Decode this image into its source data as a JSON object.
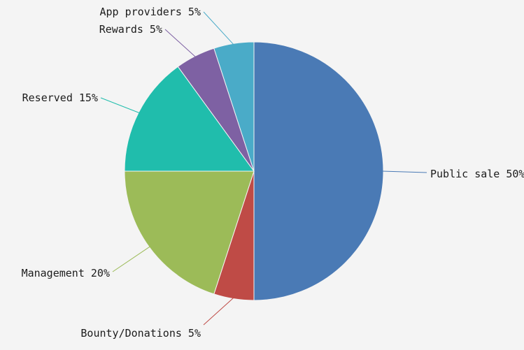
{
  "colors": {
    "background": "#f4f4f4",
    "text": "#1c1c1c"
  },
  "chart_data": {
    "type": "pie",
    "title": "",
    "legend": "none",
    "direction": "clockwise",
    "start_angle_deg": 0,
    "label_format": "{label} {value}%",
    "total_percent": 100,
    "slices": [
      {
        "label": "Public sale",
        "value": 50,
        "color": "#4a7ab5"
      },
      {
        "label": "Bounty/Donations",
        "value": 5,
        "color": "#bf4b46"
      },
      {
        "label": "Management",
        "value": 20,
        "color": "#9cbb58"
      },
      {
        "label": "Reserved",
        "value": 15,
        "color": "#20bdac"
      },
      {
        "label": "Rewards",
        "value": 5,
        "color": "#7e61a3"
      },
      {
        "label": "App providers",
        "value": 5,
        "color": "#4aabc8"
      }
    ]
  }
}
